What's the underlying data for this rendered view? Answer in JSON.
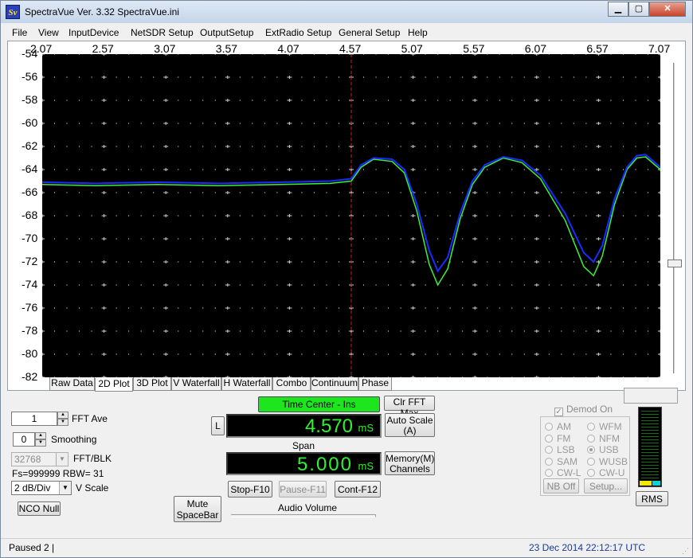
{
  "window": {
    "title": "SpectraVue Ver. 3.32   SpectraVue.ini",
    "icon_text": "Sv",
    "minimize": "▁",
    "maximize": "▢",
    "close": "✕"
  },
  "menu": [
    {
      "label": "File"
    },
    {
      "label": "View"
    },
    {
      "label": "InputDevice"
    },
    {
      "label": "NetSDR Setup"
    },
    {
      "label": "OutputSetup"
    },
    {
      "label": "ExtRadio Setup"
    },
    {
      "label": "General Setup"
    },
    {
      "label": "Help"
    }
  ],
  "colors": {
    "trace_average": "#1a2cff",
    "trace_live": "#3cf03c",
    "grid_tick": "#cfcfcf",
    "center_marker": "#d42020",
    "plot_bg": "#000000",
    "lcd_text": "#2cf52c",
    "time_center_bg": "#1ee61e"
  },
  "chart_data": {
    "type": "line",
    "x_ticks": [
      "2.07",
      "2.57",
      "3.07",
      "3.57",
      "4.07",
      "4.57",
      "5.07",
      "5.57",
      "6.07",
      "6.57",
      "7.07"
    ],
    "y_ticks": [
      "-54",
      "-56",
      "-58",
      "-60",
      "-62",
      "-64",
      "-66",
      "-68",
      "-70",
      "-72",
      "-74",
      "-76",
      "-78",
      "-80",
      "-82"
    ],
    "xlim": [
      2.07,
      7.07
    ],
    "ylim": [
      -82,
      -54
    ],
    "center_marker_x": 4.57,
    "grid": "tick-marks",
    "series": [
      {
        "color": "#1a2cff",
        "x": [
          2.07,
          2.5,
          3.0,
          3.5,
          4.0,
          4.4,
          4.57,
          4.65,
          4.75,
          4.9,
          5.0,
          5.1,
          5.2,
          5.27,
          5.35,
          5.45,
          5.55,
          5.65,
          5.8,
          5.95,
          6.1,
          6.3,
          6.45,
          6.53,
          6.6,
          6.7,
          6.8,
          6.88,
          6.95,
          7.07
        ],
        "y": [
          -65.1,
          -65.2,
          -65.1,
          -65.2,
          -65.1,
          -65.0,
          -64.8,
          -63.6,
          -63.0,
          -63.1,
          -64.0,
          -67.0,
          -71.0,
          -72.8,
          -71.6,
          -67.8,
          -65.0,
          -63.6,
          -62.9,
          -63.2,
          -64.5,
          -67.8,
          -71.2,
          -72.0,
          -70.6,
          -66.5,
          -63.8,
          -62.8,
          -62.7,
          -63.8
        ]
      },
      {
        "color": "#3cf03c",
        "x": [
          2.07,
          2.5,
          3.0,
          3.5,
          4.0,
          4.4,
          4.57,
          4.65,
          4.75,
          4.9,
          5.0,
          5.1,
          5.2,
          5.27,
          5.35,
          5.45,
          5.55,
          5.65,
          5.8,
          5.95,
          6.1,
          6.3,
          6.45,
          6.53,
          6.6,
          6.7,
          6.8,
          6.88,
          6.95,
          7.07
        ],
        "y": [
          -65.3,
          -65.4,
          -65.3,
          -65.4,
          -65.3,
          -65.2,
          -65.0,
          -63.8,
          -63.1,
          -63.3,
          -64.3,
          -67.6,
          -72.2,
          -74.0,
          -72.6,
          -68.3,
          -65.3,
          -63.8,
          -63.0,
          -63.4,
          -64.8,
          -68.4,
          -72.4,
          -73.2,
          -71.5,
          -67.0,
          -64.0,
          -63.0,
          -62.9,
          -64.0
        ]
      }
    ]
  },
  "tabs": [
    {
      "label": "Raw Data"
    },
    {
      "label": "2D Plot",
      "active": true
    },
    {
      "label": "3D Plot"
    },
    {
      "label": "V Waterfall"
    },
    {
      "label": "H Waterfall"
    },
    {
      "label": "Combo"
    },
    {
      "label": "Continuum"
    },
    {
      "label": "Phase"
    }
  ],
  "controls": {
    "fft_ave": {
      "value": "1",
      "label": "FFT Ave"
    },
    "smoothing": {
      "value": "0",
      "label": "Smoothing"
    },
    "fft_blk": {
      "value": "32768",
      "label": "FFT/BLK"
    },
    "fs_rbw": "Fs=999999 RBW=  31",
    "vscale": {
      "value": "2 dB/Div",
      "label": "V Scale"
    },
    "nco_null": "NCO Null",
    "time_center": "Time Center - Ins",
    "clr_fft_max": "Clr FFT Max",
    "auto_scale": "Auto Scale\n(A)",
    "lock_button": "L",
    "center_value": "4.570",
    "center_unit": "mS",
    "span_label": "Span",
    "span_value": "5.000",
    "span_unit": "mS",
    "memory_channels": "Memory(M)\nChannels",
    "stop": "Stop-F10",
    "pause": "Pause-F11",
    "cont": "Cont-F12",
    "mute": "Mute\nSpaceBar",
    "audio_volume": "Audio Volume",
    "demod_on": "Demod On",
    "nb_off": "NB Off",
    "setup": "Setup...",
    "rms": "RMS",
    "meter_level": 0.06
  },
  "demod_modes": [
    {
      "label": "AM",
      "selected": false
    },
    {
      "label": "WFM",
      "selected": false
    },
    {
      "label": "FM",
      "selected": false
    },
    {
      "label": "NFM",
      "selected": false
    },
    {
      "label": "LSB",
      "selected": false
    },
    {
      "label": "USB",
      "selected": true
    },
    {
      "label": "SAM",
      "selected": false
    },
    {
      "label": "WUSB",
      "selected": false
    },
    {
      "label": "CW-L",
      "selected": false
    },
    {
      "label": "CW-U",
      "selected": false
    }
  ],
  "status": {
    "left": "Paused 2  |",
    "right": "23 Dec 2014   22:12:17 UTC"
  }
}
